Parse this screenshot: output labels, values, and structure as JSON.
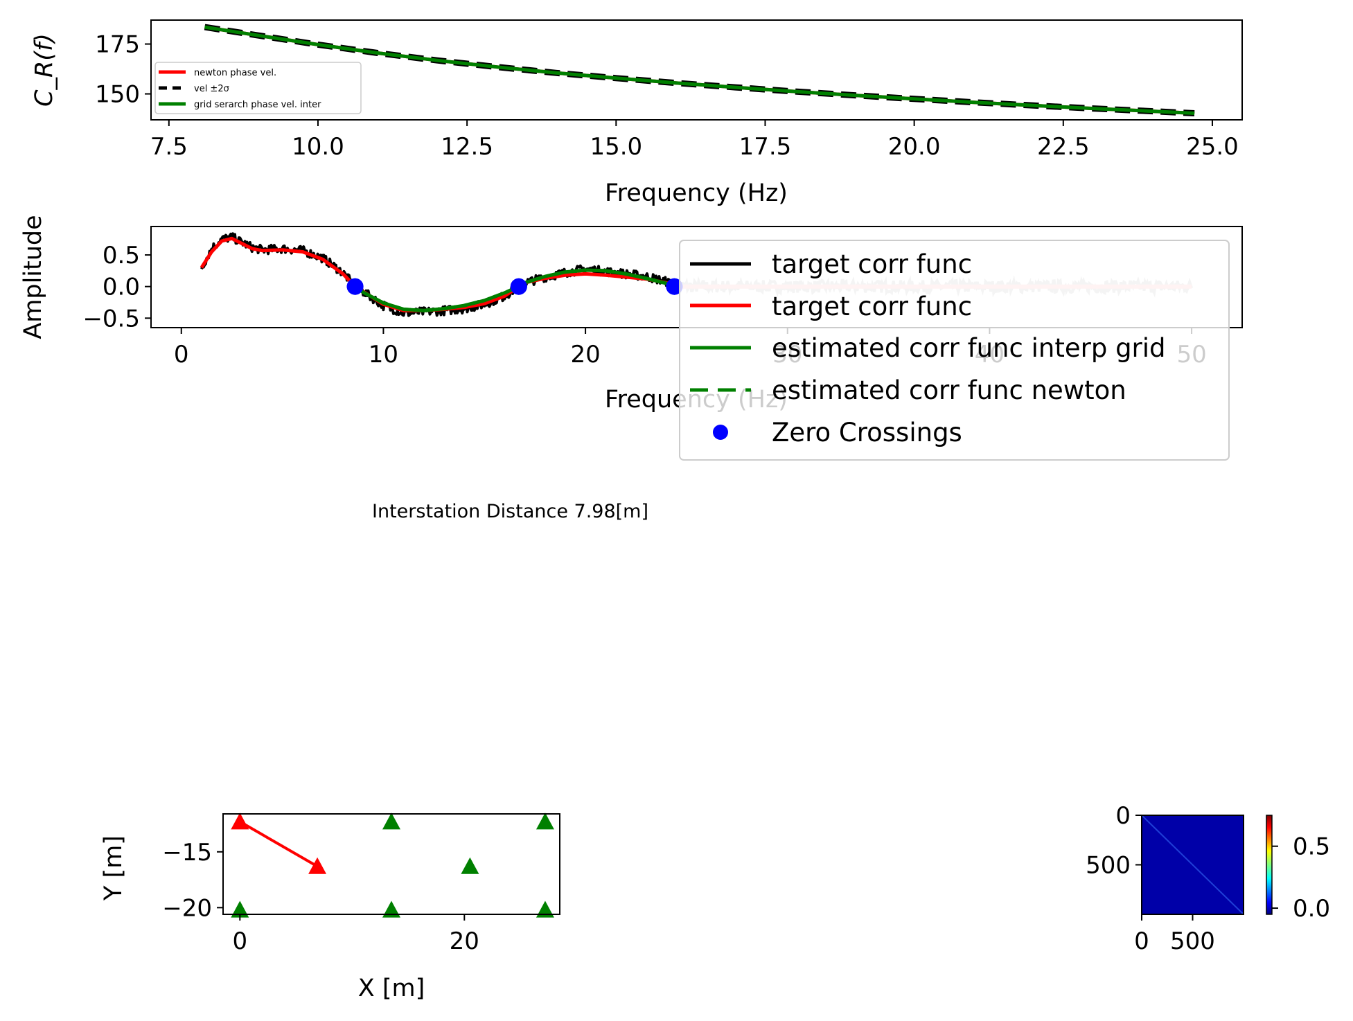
{
  "chart_data": [
    {
      "type": "line",
      "xlabel": "Frequency (Hz)",
      "ylabel": "C_R(f)",
      "xlim": [
        7.2,
        25.5
      ],
      "ylim": [
        137,
        187
      ],
      "xticks": [
        "7.5",
        "10.0",
        "12.5",
        "15.0",
        "17.5",
        "20.0",
        "22.5",
        "25.0"
      ],
      "xtick_values": [
        7.5,
        10.0,
        12.5,
        15.0,
        17.5,
        20.0,
        22.5,
        25.0
      ],
      "yticks": [
        "150",
        "175"
      ],
      "ytick_values": [
        150,
        175
      ],
      "legend": {
        "placement": "lower-left"
      },
      "series": [
        {
          "name": "newton phase vel.",
          "color": "#ff0000",
          "style": "solid",
          "x": [
            8.1,
            9,
            10,
            11,
            12,
            13,
            14,
            15,
            16,
            17,
            18,
            19,
            20,
            21,
            22,
            23,
            24,
            24.7
          ],
          "y": [
            183.5,
            179.3,
            174.7,
            170.5,
            166.8,
            163.5,
            160.5,
            157.9,
            155.5,
            153.3,
            151.2,
            149.3,
            147.5,
            145.8,
            144.2,
            142.7,
            141.3,
            140.3
          ]
        },
        {
          "name": "vel ±2σ",
          "color": "#000000",
          "style": "dashed",
          "x": [
            8.1,
            9,
            10,
            11,
            12,
            13,
            14,
            15,
            16,
            17,
            18,
            19,
            20,
            21,
            22,
            23,
            24,
            24.7
          ],
          "y": [
            183.5,
            179.3,
            174.7,
            170.5,
            166.8,
            163.5,
            160.5,
            157.9,
            155.5,
            153.3,
            151.2,
            149.3,
            147.5,
            145.8,
            144.2,
            142.7,
            141.3,
            140.3
          ]
        },
        {
          "name": "grid serarch phase vel. inter",
          "color": "#008000",
          "style": "solid",
          "x": [
            8.1,
            9,
            10,
            11,
            12,
            13,
            14,
            15,
            16,
            17,
            18,
            19,
            20,
            21,
            22,
            23,
            24,
            24.7
          ],
          "y": [
            183.5,
            179.3,
            174.7,
            170.5,
            166.8,
            163.5,
            160.5,
            157.9,
            155.5,
            153.3,
            151.2,
            149.3,
            147.5,
            145.8,
            144.2,
            142.7,
            141.3,
            140.3
          ]
        }
      ]
    },
    {
      "type": "line",
      "xlabel": "Frequency (Hz)",
      "ylabel": "Amplitude",
      "xlim": [
        -1.5,
        52.5
      ],
      "ylim": [
        -0.65,
        0.95
      ],
      "xticks": [
        "0",
        "10",
        "20",
        "30",
        "40",
        "50"
      ],
      "xtick_values": [
        0,
        10,
        20,
        30,
        40,
        50
      ],
      "yticks": [
        "0.5",
        "0.0",
        "−0.5"
      ],
      "ytick_values": [
        0.5,
        0.0,
        -0.5
      ],
      "legend": {
        "placement": "upper-right"
      },
      "series": [
        {
          "name": "target corr func",
          "color": "#000000",
          "style": "noisy",
          "x": [
            1,
            1.5,
            2,
            2.5,
            3,
            3.5,
            4,
            5,
            6,
            7,
            8,
            8.6,
            9,
            10,
            11,
            12,
            13,
            14,
            15,
            16,
            16.7,
            17,
            18,
            19,
            20,
            21,
            22,
            23,
            24,
            24.4
          ],
          "y": [
            0.3,
            0.6,
            0.75,
            0.78,
            0.7,
            0.62,
            0.58,
            0.6,
            0.57,
            0.45,
            0.22,
            0.0,
            -0.08,
            -0.3,
            -0.42,
            -0.4,
            -0.38,
            -0.35,
            -0.28,
            -0.15,
            0.0,
            0.06,
            0.15,
            0.22,
            0.28,
            0.24,
            0.2,
            0.16,
            0.08,
            0.02
          ]
        },
        {
          "name": "target corr func",
          "color": "#ff0000",
          "style": "solid",
          "x": [
            1,
            1.5,
            2,
            2.5,
            3,
            3.5,
            4,
            5,
            6,
            7,
            8,
            8.6,
            9,
            10,
            11,
            12,
            13,
            14,
            15,
            16,
            16.7,
            17,
            18,
            19,
            20,
            21,
            22,
            23,
            24,
            24.4
          ],
          "y": [
            0.3,
            0.55,
            0.72,
            0.76,
            0.68,
            0.6,
            0.57,
            0.58,
            0.55,
            0.43,
            0.2,
            0.0,
            -0.08,
            -0.28,
            -0.38,
            -0.38,
            -0.36,
            -0.33,
            -0.27,
            -0.15,
            0.0,
            0.06,
            0.13,
            0.18,
            0.2,
            0.18,
            0.15,
            0.12,
            0.06,
            0.02
          ]
        },
        {
          "name": "estimated corr func interp grid",
          "color": "#008000",
          "style": "solid",
          "x": [
            8.6,
            9,
            10,
            11,
            12,
            13,
            14,
            15,
            16,
            16.7,
            17,
            18,
            19,
            20,
            21,
            22,
            23,
            24,
            24.4
          ],
          "y": [
            0.0,
            -0.09,
            -0.26,
            -0.36,
            -0.38,
            -0.35,
            -0.3,
            -0.22,
            -0.1,
            0.0,
            0.06,
            0.16,
            0.23,
            0.26,
            0.25,
            0.2,
            0.13,
            0.05,
            0.0
          ]
        },
        {
          "name": "estimated corr func newton",
          "color": "#008000",
          "style": "dashed",
          "x": [
            8.6,
            9,
            10,
            11,
            12,
            13,
            14,
            15,
            16,
            16.7,
            17,
            18,
            19,
            20,
            21,
            22,
            23,
            24,
            24.4
          ],
          "y": [
            0.0,
            -0.09,
            -0.26,
            -0.36,
            -0.38,
            -0.35,
            -0.3,
            -0.22,
            -0.1,
            0.0,
            0.06,
            0.16,
            0.23,
            0.26,
            0.25,
            0.2,
            0.13,
            0.05,
            0.0
          ]
        },
        {
          "name": "Zero Crossings",
          "color": "#0000ff",
          "style": "markers",
          "x": [
            8.6,
            16.7,
            24.4
          ],
          "y": [
            0.0,
            0.0,
            0.0
          ]
        }
      ],
      "faded_series": [
        {
          "color": "#c8c8c8",
          "style": "noisy",
          "x": [
            24.4,
            50
          ],
          "y": [
            0.0,
            0.0
          ]
        },
        {
          "color": "#ffc0c0",
          "style": "solid",
          "x": [
            24.4,
            50
          ],
          "y": [
            0.0,
            0.0
          ]
        }
      ]
    },
    {
      "type": "scatter",
      "xlabel": "X  [m]",
      "ylabel": "Y  [m]",
      "xlim": [
        -1.5,
        28.5
      ],
      "ylim": [
        -20.6,
        -11.6
      ],
      "xticks": [
        "0",
        "20"
      ],
      "xtick_values": [
        0,
        20
      ],
      "yticks": [
        "−15",
        "−20"
      ],
      "ytick_values": [
        -15,
        -20
      ],
      "stations": {
        "color": "#008000",
        "x": [
          13.5,
          27.2,
          20.5,
          0,
          13.5,
          27.2
        ],
        "y": [
          -12.3,
          -12.3,
          -16.3,
          -20.2,
          -20.2,
          -20.2
        ]
      },
      "selected_pair": {
        "color": "#ff0000",
        "x": [
          0,
          6.9
        ],
        "y": [
          -12.3,
          -16.3
        ]
      }
    },
    {
      "type": "heatmap",
      "xticks": [
        "0",
        "500"
      ],
      "xtick_values": [
        0,
        500
      ],
      "yticks": [
        "0",
        "500"
      ],
      "ytick_values": [
        0,
        500
      ],
      "xlim": [
        0,
        1000
      ],
      "ylim": [
        0,
        1000
      ],
      "colormap": "jet",
      "colorbar_ticks": [
        "0.5",
        "0.0"
      ],
      "colorbar_tick_values": [
        0.5,
        0.0
      ],
      "colorbar_range": [
        -0.05,
        0.75
      ],
      "fill_color": "#0000a8",
      "diagonal_color": "#1f3fd6"
    }
  ],
  "annotations": {
    "caption": "Interstation Distance 7.98[m]"
  }
}
